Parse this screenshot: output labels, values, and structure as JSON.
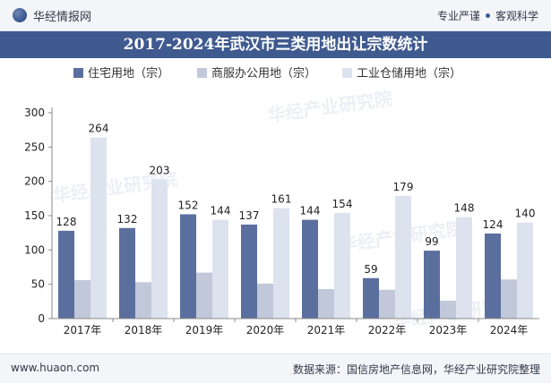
{
  "header": {
    "brand_name": "华经情报网",
    "tagline_left": "专业严谨",
    "tagline_right": "客观科学"
  },
  "title": "2017-2024年武汉市三类用地出让宗数统计",
  "colors": {
    "title_bar": "#3f5a8f",
    "residential": "#5b6f9e",
    "commercial": "#c1c8d9",
    "industrial": "#dde2ef"
  },
  "icons": {
    "brand_logo": "globe-logo-icon"
  },
  "watermark_text": "华经产业研究院",
  "chart_data": {
    "type": "bar",
    "categories": [
      "2017年",
      "2018年",
      "2019年",
      "2020年",
      "2021年",
      "2022年",
      "2023年",
      "2024年"
    ],
    "series": [
      {
        "name": "住宅用地（宗）",
        "values": [
          128,
          132,
          152,
          137,
          144,
          59,
          99,
          124
        ],
        "color": "#5b6f9e",
        "show_labels": true
      },
      {
        "name": "商服办公用地（宗）",
        "values": [
          56,
          53,
          67,
          51,
          43,
          42,
          26,
          57
        ],
        "color": "#c1c8d9",
        "show_labels": false
      },
      {
        "name": "工业仓储用地（宗）",
        "values": [
          264,
          203,
          144,
          161,
          154,
          179,
          148,
          140
        ],
        "color": "#dde2ef",
        "show_labels": true
      }
    ],
    "ylim": [
      0,
      300
    ],
    "yticks": [
      0,
      50,
      100,
      150,
      200,
      250,
      300
    ],
    "legend_position": "top",
    "grid": false
  },
  "footer": {
    "url": "www.huaon.com",
    "source": "数据来源：国信房地产信息网，华经产业研究院整理"
  }
}
